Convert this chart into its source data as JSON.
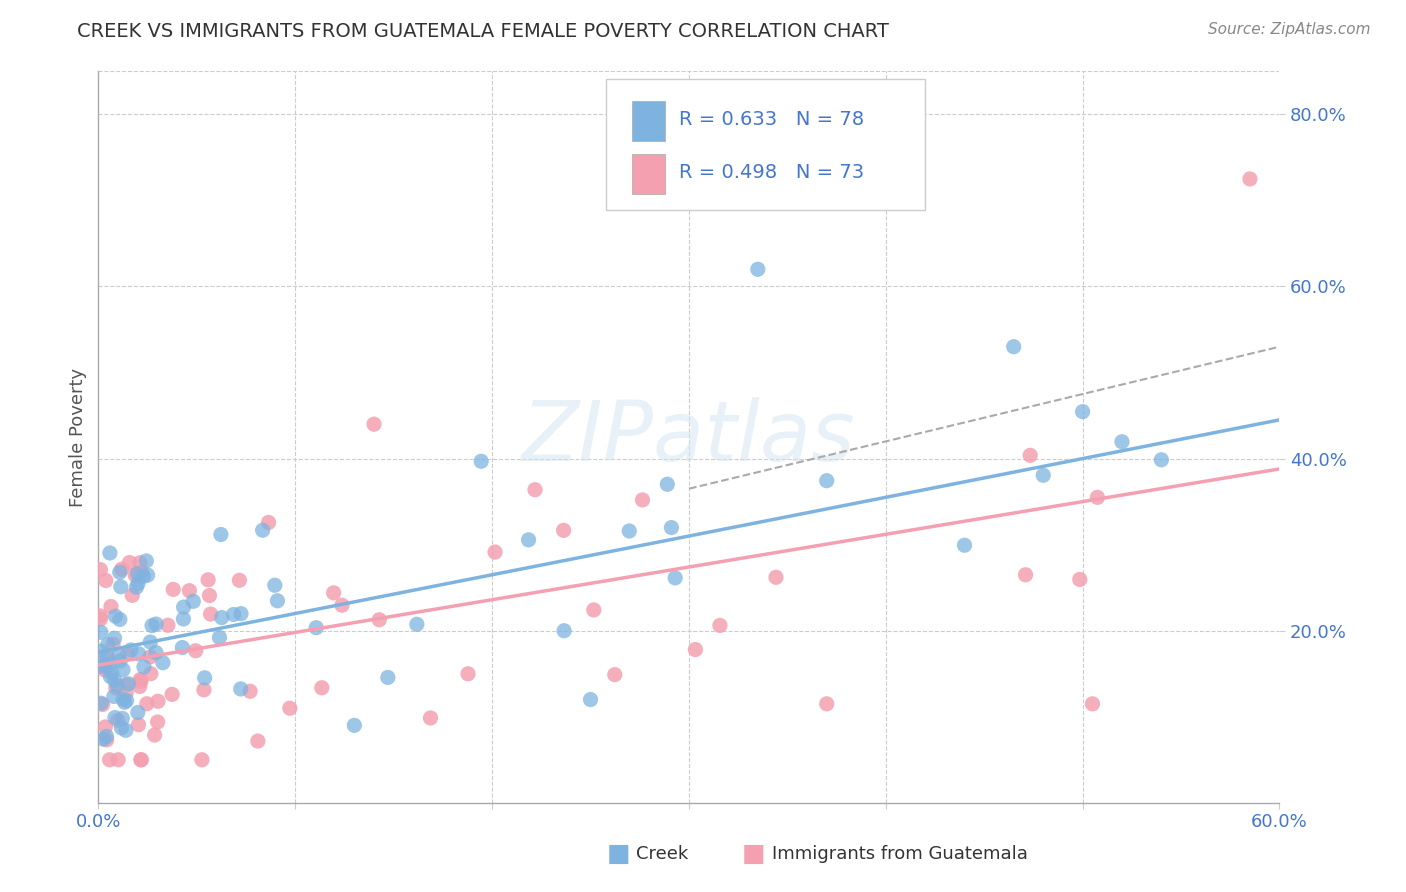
{
  "title": "CREEK VS IMMIGRANTS FROM GUATEMALA FEMALE POVERTY CORRELATION CHART",
  "source": "Source: ZipAtlas.com",
  "ylabel": "Female Poverty",
  "xlim": [
    0.0,
    0.6
  ],
  "ylim": [
    0.0,
    0.85
  ],
  "xtick_positions": [
    0.0,
    0.1,
    0.2,
    0.3,
    0.4,
    0.5,
    0.6
  ],
  "xtick_labels": [
    "0.0%",
    "",
    "",
    "",
    "",
    "",
    "60.0%"
  ],
  "ytick_positions": [
    0.2,
    0.4,
    0.6,
    0.8
  ],
  "ytick_labels": [
    "20.0%",
    "40.0%",
    "60.0%",
    "80.0%"
  ],
  "creek_color": "#7EB3E0",
  "guatemala_color": "#F4A0B0",
  "legend_text_color": "#4477CC",
  "creek_R": 0.633,
  "creek_N": 78,
  "guatemala_R": 0.498,
  "guatemala_N": 73,
  "creek_trend_intercept": 0.175,
  "creek_trend_slope": 0.45,
  "guatemala_trend_intercept": 0.16,
  "guatemala_trend_slope": 0.38,
  "watermark": "ZIPatlas",
  "background_color": "#ffffff",
  "grid_color": "#cccccc"
}
